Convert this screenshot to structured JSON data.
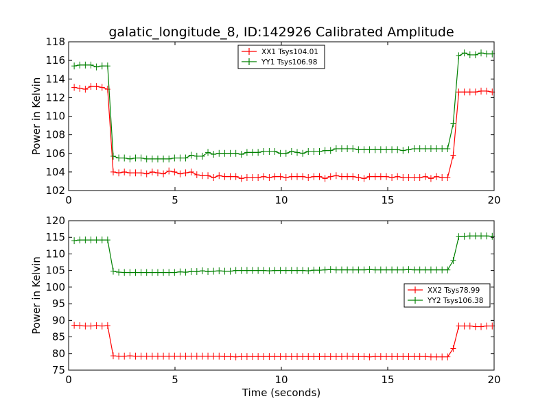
{
  "figure": {
    "title": "galatic_longitude_8, ID:142926 Calibrated Amplitude",
    "xlabel": "Time (seconds)"
  },
  "chart_data": [
    {
      "type": "line",
      "title": "galatic_longitude_8, ID:142926 Calibrated Amplitude",
      "xlabel": "",
      "ylabel": "Power in Kelvin",
      "xlim": [
        0,
        20
      ],
      "ylim": [
        102,
        118
      ],
      "xticks": [
        0,
        5,
        10,
        15,
        20
      ],
      "yticks": [
        102,
        104,
        106,
        108,
        110,
        112,
        114,
        116,
        118
      ],
      "legend_position": "top-center",
      "x": {
        "start": 0.262,
        "step": 0.262,
        "count": 76
      },
      "series": [
        {
          "name": "XX1 Tsys104.01",
          "color": "#ff0000",
          "values": [
            113.1,
            113.0,
            112.9,
            113.2,
            113.2,
            113.1,
            112.9,
            104.0,
            103.9,
            104.0,
            103.9,
            103.9,
            103.9,
            103.8,
            104.0,
            103.9,
            103.8,
            104.1,
            104.0,
            103.8,
            103.9,
            104.0,
            103.7,
            103.6,
            103.6,
            103.4,
            103.6,
            103.5,
            103.5,
            103.5,
            103.3,
            103.4,
            103.4,
            103.4,
            103.5,
            103.4,
            103.5,
            103.5,
            103.4,
            103.5,
            103.5,
            103.5,
            103.4,
            103.5,
            103.5,
            103.3,
            103.5,
            103.6,
            103.5,
            103.5,
            103.5,
            103.4,
            103.3,
            103.5,
            103.5,
            103.5,
            103.5,
            103.4,
            103.5,
            103.4,
            103.4,
            103.4,
            103.4,
            103.5,
            103.3,
            103.5,
            103.4,
            103.4,
            105.8,
            112.6,
            112.6,
            112.6,
            112.6,
            112.7,
            112.7,
            112.6
          ]
        },
        {
          "name": "YY1 Tsys106.98",
          "color": "#008000",
          "values": [
            115.4,
            115.5,
            115.5,
            115.5,
            115.3,
            115.4,
            115.4,
            105.7,
            105.5,
            105.5,
            105.4,
            105.5,
            105.5,
            105.4,
            105.4,
            105.4,
            105.4,
            105.4,
            105.5,
            105.5,
            105.5,
            105.8,
            105.7,
            105.7,
            106.1,
            105.9,
            106.0,
            106.0,
            106.0,
            106.0,
            105.9,
            106.1,
            106.1,
            106.1,
            106.2,
            106.2,
            106.2,
            106.0,
            106.0,
            106.2,
            106.1,
            106.0,
            106.2,
            106.2,
            106.2,
            106.3,
            106.3,
            106.5,
            106.5,
            106.5,
            106.5,
            106.4,
            106.4,
            106.4,
            106.4,
            106.4,
            106.4,
            106.4,
            106.4,
            106.3,
            106.4,
            106.5,
            106.5,
            106.5,
            106.5,
            106.5,
            106.5,
            106.5,
            109.2,
            116.5,
            116.8,
            116.6,
            116.6,
            116.8,
            116.7,
            116.7
          ]
        }
      ]
    },
    {
      "type": "line",
      "title": "",
      "xlabel": "Time (seconds)",
      "ylabel": "Power in Kelvin",
      "xlim": [
        0,
        20
      ],
      "ylim": [
        75,
        120
      ],
      "xticks": [
        0,
        5,
        10,
        15,
        20
      ],
      "yticks": [
        75,
        80,
        85,
        90,
        95,
        100,
        105,
        110,
        115,
        120
      ],
      "legend_position": "center-right",
      "x": {
        "start": 0.262,
        "step": 0.262,
        "count": 76
      },
      "series": [
        {
          "name": "XX2 Tsys78.99",
          "color": "#ff0000",
          "values": [
            88.5,
            88.4,
            88.3,
            88.3,
            88.4,
            88.3,
            88.4,
            79.3,
            79.2,
            79.2,
            79.3,
            79.2,
            79.2,
            79.2,
            79.2,
            79.2,
            79.2,
            79.2,
            79.2,
            79.2,
            79.2,
            79.2,
            79.2,
            79.2,
            79.2,
            79.2,
            79.2,
            79.1,
            79.1,
            79.0,
            79.1,
            79.1,
            79.1,
            79.1,
            79.1,
            79.1,
            79.1,
            79.1,
            79.1,
            79.1,
            79.1,
            79.1,
            79.1,
            79.1,
            79.1,
            79.1,
            79.1,
            79.1,
            79.1,
            79.2,
            79.1,
            79.1,
            79.1,
            79.0,
            79.1,
            79.1,
            79.1,
            79.1,
            79.1,
            79.1,
            79.1,
            79.1,
            79.1,
            79.1,
            79.0,
            79.0,
            79.0,
            79.0,
            81.5,
            88.3,
            88.3,
            88.3,
            88.1,
            88.1,
            88.3,
            88.3
          ]
        },
        {
          "name": "YY2 Tsys106.38",
          "color": "#008000",
          "values": [
            114.0,
            114.2,
            114.2,
            114.2,
            114.2,
            114.2,
            114.2,
            104.8,
            104.5,
            104.4,
            104.4,
            104.4,
            104.4,
            104.4,
            104.4,
            104.4,
            104.4,
            104.4,
            104.4,
            104.6,
            104.5,
            104.7,
            104.7,
            104.9,
            104.7,
            104.8,
            104.9,
            104.8,
            104.8,
            105.0,
            105.0,
            105.0,
            105.0,
            105.0,
            105.0,
            104.9,
            105.0,
            105.0,
            105.0,
            105.0,
            105.0,
            105.0,
            104.9,
            105.1,
            105.1,
            105.2,
            105.3,
            105.2,
            105.2,
            105.2,
            105.2,
            105.2,
            105.2,
            105.3,
            105.2,
            105.2,
            105.2,
            105.2,
            105.2,
            105.2,
            105.3,
            105.2,
            105.2,
            105.2,
            105.2,
            105.2,
            105.2,
            105.2,
            108.0,
            115.2,
            115.3,
            115.4,
            115.4,
            115.4,
            115.4,
            115.3
          ]
        }
      ]
    }
  ]
}
